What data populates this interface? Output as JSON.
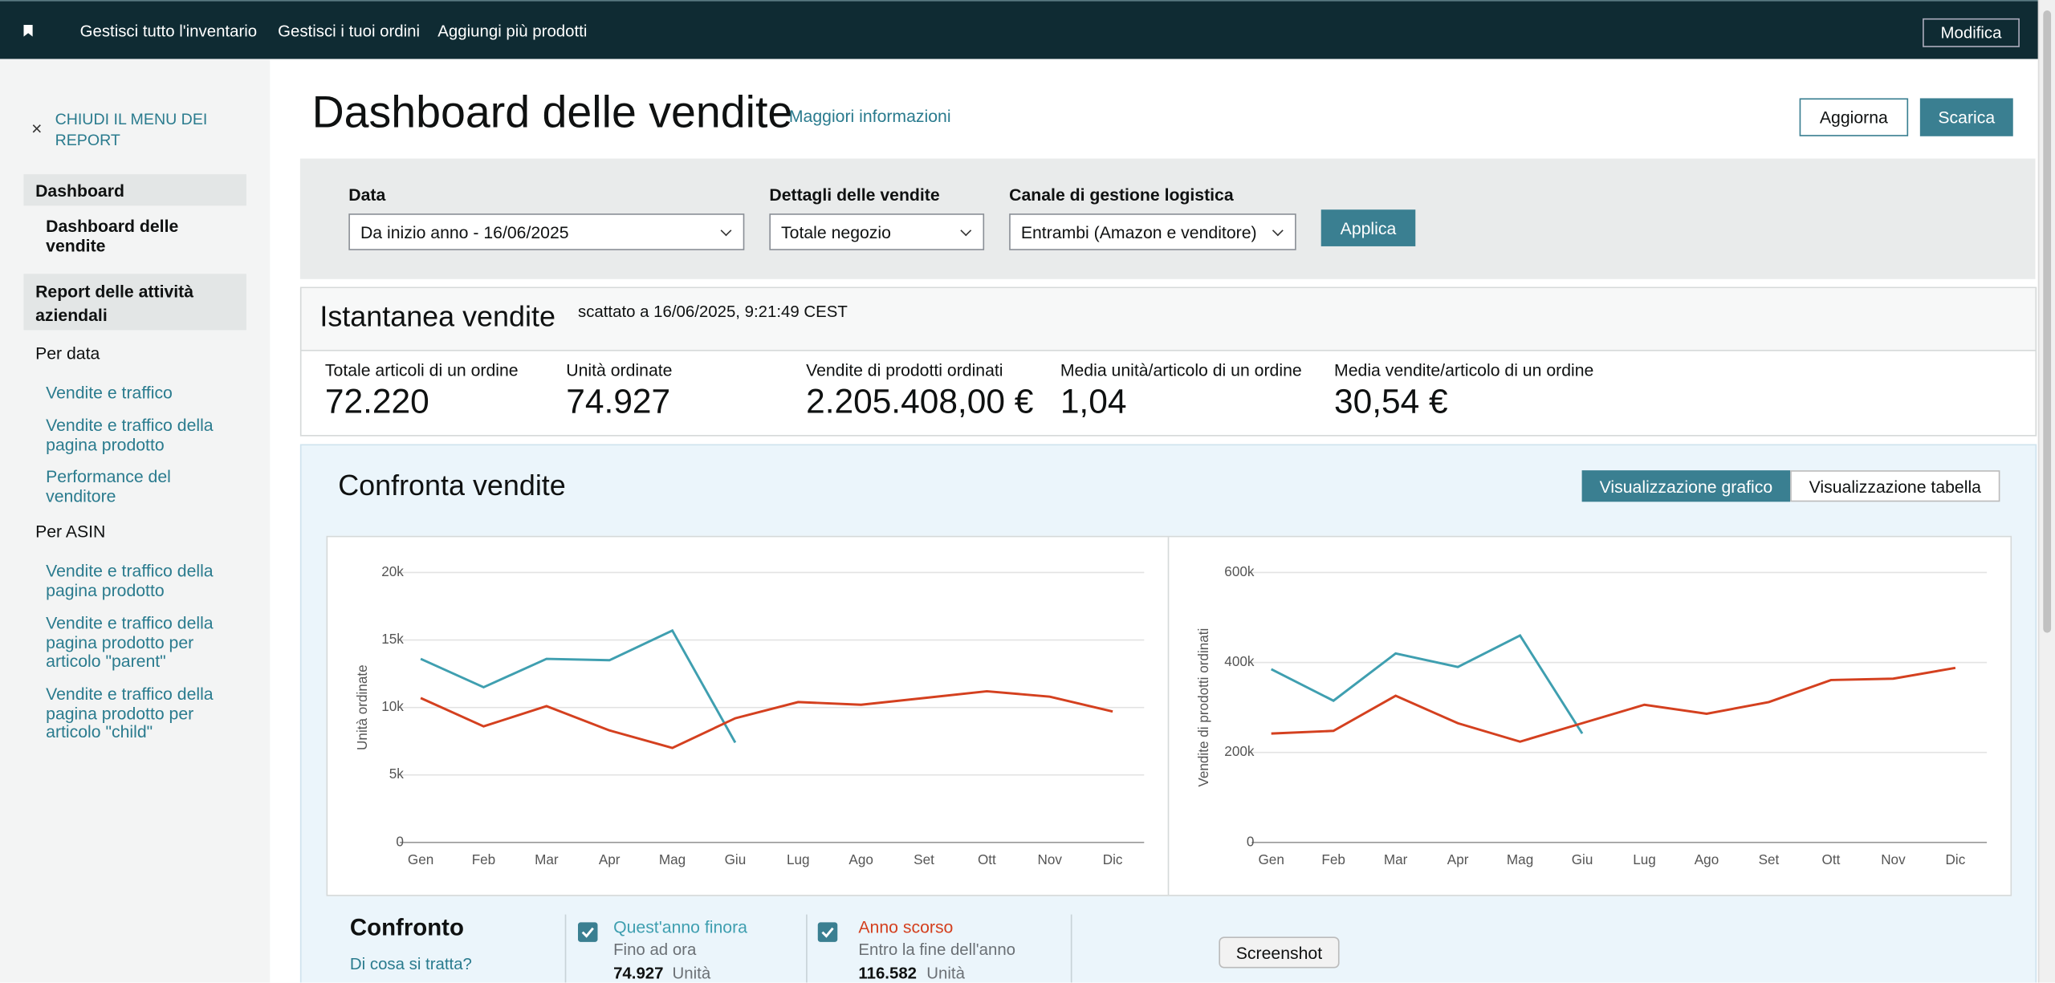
{
  "nav": {
    "links": [
      "Gestisci tutto l'inventario",
      "Gestisci i tuoi ordini",
      "Aggiungi più prodotti"
    ],
    "button": "Modifica"
  },
  "sidebar": {
    "close": "CHIUDI IL MENU DEI REPORT",
    "section1": "Dashboard",
    "active": "Dashboard delle vendite",
    "section2": "Report delle attività aziendali",
    "group1": "Per data",
    "group1_links": [
      "Vendite e traffico",
      "Vendite e traffico della pagina prodotto",
      "Performance del venditore"
    ],
    "group2": "Per ASIN",
    "group2_links": [
      "Vendite e traffico della pagina prodotto",
      "Vendite e traffico della pagina prodotto per articolo \"parent\"",
      "Vendite e traffico della pagina prodotto per articolo \"child\""
    ]
  },
  "header": {
    "title": "Dashboard delle vendite",
    "info": "Maggiori informazioni",
    "refresh": "Aggiorna",
    "download": "Scarica"
  },
  "filters": {
    "items": [
      {
        "label": "Data",
        "value": "Da inizio anno - 16/06/2025"
      },
      {
        "label": "Dettagli delle vendite",
        "value": "Totale negozio"
      },
      {
        "label": "Canale di gestione logistica",
        "value": "Entrambi (Amazon e venditore)"
      }
    ],
    "apply": "Applica"
  },
  "snapshot": {
    "title": "Istantanea vendite",
    "taken": "scattato a 16/06/2025, 9:21:49 CEST",
    "metrics": [
      {
        "label": "Totale articoli di un ordine",
        "value": "72.220"
      },
      {
        "label": "Unità ordinate",
        "value": "74.927"
      },
      {
        "label": "Vendite di prodotti ordinati",
        "value": "2.205.408,00 €"
      },
      {
        "label": "Media unità/articolo di un ordine",
        "value": "1,04"
      },
      {
        "label": "Media vendite/articolo di un ordine",
        "value": "30,54 €"
      }
    ]
  },
  "compare": {
    "title": "Confronta vendite",
    "view_chart": "Visualizzazione grafico",
    "view_table": "Visualizzazione tabella",
    "legend_title": "Confronto",
    "help": "Di cosa si tratta?",
    "entries": [
      {
        "sub": "Fino ad ora",
        "count": "74.927",
        "unit": "Unità"
      },
      {
        "sub": "Entro la fine dell'anno",
        "count": "116.582",
        "unit": "Unità"
      }
    ]
  },
  "tooltip": "Screenshot",
  "chart_data": [
    {
      "type": "line",
      "y_label": "Unità ordinate",
      "categories": [
        "Gen",
        "Feb",
        "Mar",
        "Apr",
        "Mag",
        "Giu",
        "Lug",
        "Ago",
        "Set",
        "Ott",
        "Nov",
        "Dic"
      ],
      "ylim": [
        0,
        20000
      ],
      "yticks": [
        0,
        {
          "value": 5000,
          "label": "5k"
        },
        {
          "value": 10000,
          "label": "10k"
        },
        {
          "value": 15000,
          "label": "15k"
        },
        {
          "value": 20000,
          "label": "20k"
        }
      ],
      "grid": true,
      "series": [
        {
          "name": "Quest'anno finora",
          "color": "#3f9fb0",
          "values": [
            13600,
            11500,
            13600,
            13500,
            15700,
            7400,
            null,
            null,
            null,
            null,
            null,
            null
          ]
        },
        {
          "name": "Anno scorso",
          "color": "#d4401f",
          "values": [
            10700,
            8600,
            10100,
            8300,
            7000,
            9200,
            10400,
            10200,
            10700,
            11200,
            10800,
            9700
          ]
        }
      ]
    },
    {
      "type": "line",
      "y_label": "Vendite di prodotti ordinati",
      "categories": [
        "Gen",
        "Feb",
        "Mar",
        "Apr",
        "Mag",
        "Giu",
        "Lug",
        "Ago",
        "Set",
        "Ott",
        "Nov",
        "Dic"
      ],
      "ylim": [
        0,
        600000
      ],
      "yticks": [
        0,
        {
          "value": 200000,
          "label": "200k"
        },
        {
          "value": 400000,
          "label": "400k"
        },
        {
          "value": 600000,
          "label": "600k"
        }
      ],
      "grid": true,
      "series": [
        {
          "color": "#3f9fb0",
          "values": [
            385000,
            315000,
            420000,
            390000,
            460000,
            242000,
            null,
            null,
            null,
            null,
            null,
            null
          ]
        },
        {
          "color": "#d4401f",
          "values": [
            242000,
            248000,
            326000,
            265000,
            224000,
            265000,
            306000,
            286000,
            312000,
            361000,
            364000,
            388000
          ]
        }
      ]
    }
  ]
}
